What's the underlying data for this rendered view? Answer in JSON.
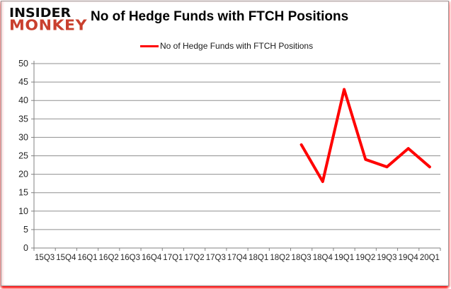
{
  "logo": {
    "line1": "INSIDER",
    "line2": "MONKEY"
  },
  "header": {
    "title": "No of Hedge Funds with FTCH Positions"
  },
  "legend": {
    "label": "No of Hedge Funds with FTCH Positions",
    "line_color": "#ff0000"
  },
  "colors": {
    "series_red": "#ff0000",
    "logo_red": "#c9402e",
    "grid": "#8f8f8f",
    "axis": "#808080",
    "tick_text": "#262626",
    "border_glow": "#ff0000"
  },
  "chart_data": {
    "type": "line",
    "title": "No of Hedge Funds with FTCH Positions",
    "categories": [
      "15Q3",
      "15Q4",
      "16Q1",
      "16Q2",
      "16Q3",
      "16Q4",
      "17Q1",
      "17Q2",
      "17Q3",
      "17Q4",
      "18Q1",
      "18Q2",
      "18Q3",
      "18Q4",
      "19Q1",
      "19Q2",
      "19Q3",
      "19Q4",
      "20Q1"
    ],
    "series": [
      {
        "name": "No of Hedge Funds with FTCH Positions",
        "color": "#ff0000",
        "values": [
          null,
          null,
          null,
          null,
          null,
          null,
          null,
          null,
          null,
          null,
          null,
          null,
          28,
          18,
          43,
          24,
          22,
          27,
          22
        ]
      }
    ],
    "ylim": [
      0,
      50
    ],
    "ytick_step": 5,
    "yticks": [
      0,
      5,
      10,
      15,
      20,
      25,
      30,
      35,
      40,
      45,
      50
    ],
    "xlabel": "",
    "ylabel": "",
    "grid": true,
    "legend_position": "top-center"
  }
}
